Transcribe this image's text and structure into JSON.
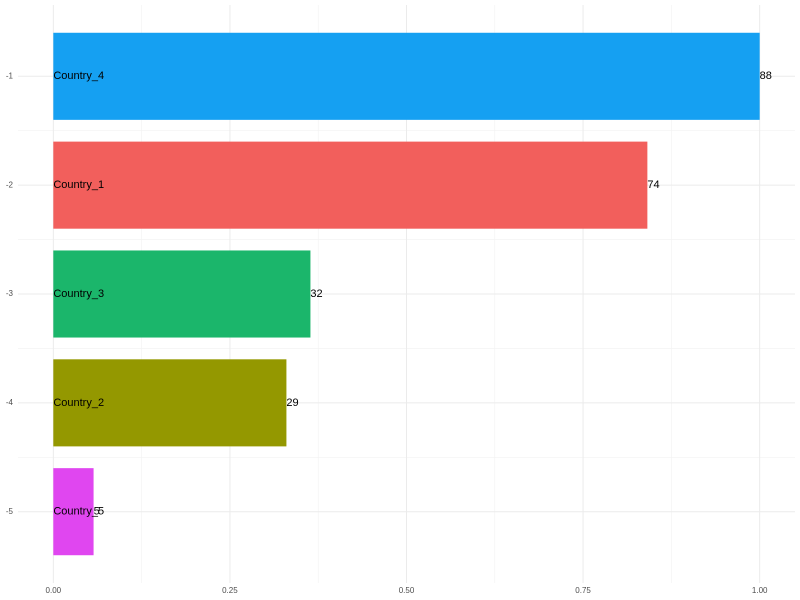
{
  "chart_data": {
    "type": "bar",
    "orientation": "horizontal",
    "categories": [
      "Country_4",
      "Country_1",
      "Country_3",
      "Country_2",
      "Country_5"
    ],
    "ranks": [
      -1,
      -2,
      -3,
      -4,
      -5
    ],
    "values": [
      1.0,
      0.841,
      0.364,
      0.33,
      0.057
    ],
    "value_labels": [
      88,
      74,
      32,
      29,
      5
    ],
    "colors": [
      "#15a0f2",
      "#f25f5c",
      "#1bb66b",
      "#949800",
      "#e046f0"
    ],
    "xlim": [
      -0.05,
      1.05
    ],
    "xticks": [
      {
        "value": 0,
        "label": "0.00"
      },
      {
        "value": 0.25,
        "label": "0.25"
      },
      {
        "value": 0.5,
        "label": "0.50"
      },
      {
        "value": 0.75,
        "label": "0.75"
      },
      {
        "value": 1,
        "label": "1.00"
      }
    ],
    "ylim": [
      -5.6,
      -0.4
    ],
    "yticks": [
      -1,
      -2,
      -3,
      -4,
      -5
    ],
    "grid": true
  }
}
